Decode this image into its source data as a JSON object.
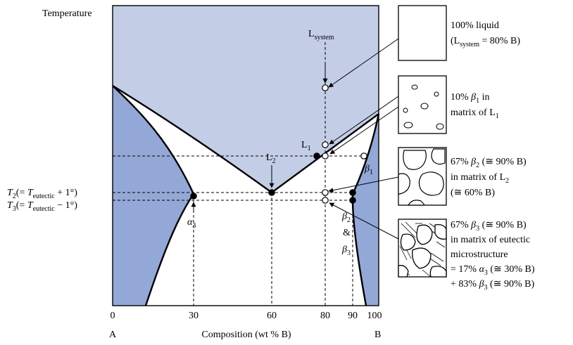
{
  "axes": {
    "y_label": "Temperature",
    "x_label": "Composition (wt % B)",
    "x_ticks": [
      "0",
      "30",
      "60",
      "80",
      "90",
      "100"
    ],
    "left_component": "A",
    "right_component": "B"
  },
  "phases": {
    "l_system": "L",
    "l_system_sub": "system",
    "l1": "L",
    "l1_sub": "1",
    "l2": "L",
    "l2_sub": "2",
    "beta1": "β",
    "beta1_sub": "1",
    "beta2": "β",
    "beta2_sub": "2",
    "amp": "&",
    "beta3": "β",
    "beta3_sub": "3",
    "alpha3": "α",
    "alpha3_sub": "3"
  },
  "temperatures": {
    "t2_T": "T",
    "t2_sub": "2",
    "t2_pre": "(= ",
    "t2_T2": "T",
    "t2_sub2": "eutectic",
    "t2_post": " + 1°)",
    "t3_T": "T",
    "t3_sub": "3",
    "t3_pre": "(= ",
    "t3_T2": "T",
    "t3_sub2": "eutectic",
    "t3_post": " − 1°)"
  },
  "descriptions": {
    "liquid": {
      "line1": "100% liquid",
      "line2_pre": "(L",
      "line2_sub": "system",
      "line2_post": " = 80% B)"
    },
    "beta1_matrix": {
      "line1_pre": "10% ",
      "line1_sym": "β",
      "line1_sub": "1",
      "line1_post": " in",
      "line2_pre": "matrix of L",
      "line2_sub": "1"
    },
    "beta2_matrix": {
      "line1_pre": "67% ",
      "line1_sym": "β",
      "line1_sub": "2",
      "line1_post": " (≅ 90% B)",
      "line2_pre": "in matrix of L",
      "line2_sub": "2",
      "line3": "(≅ 60% B)"
    },
    "beta3_eutectic": {
      "line1_pre": "67% ",
      "line1_sym": "β",
      "line1_sub": "3",
      "line1_post": " (≅ 90% B)",
      "line2": "in matrix of eutectic",
      "line3": "microstructure",
      "line4_pre": "= 17% ",
      "line4_sym": "α",
      "line4_sub": "3",
      "line4_post": " (≅ 30% B)",
      "line5_pre": "+ 83% ",
      "line5_sym": "β",
      "line5_sub": "3",
      "line5_post": " (≅ 90% B)"
    }
  },
  "colors": {
    "liquid_region": "#c3cde6",
    "solid_region": "#93a8d6",
    "two_phase_region": "#ffffff",
    "line": "#000000"
  }
}
